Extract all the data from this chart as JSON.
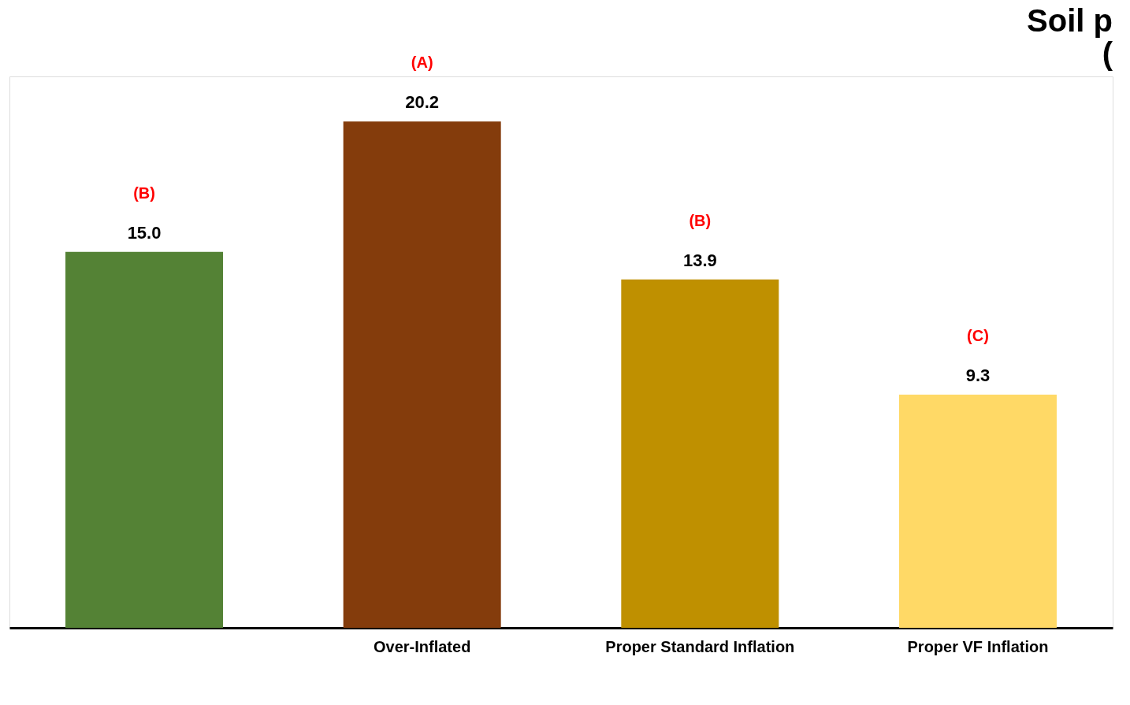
{
  "chart_data": {
    "type": "bar",
    "title": [
      "Soil p",
      "("
    ],
    "categories": [
      null,
      "Over-Inflated",
      "Proper Standard Inflation",
      "Proper VF Inflation"
    ],
    "values": [
      15.0,
      20.2,
      13.9,
      9.3
    ],
    "colors": [
      "#548235",
      "#843c0c",
      "#bf9000",
      "#ffd966"
    ],
    "value_labels": [
      "15.0",
      "20.2",
      "13.9",
      "9.3"
    ],
    "annotations": [
      "(B)",
      "(A)",
      "(B)",
      "(C)"
    ]
  }
}
